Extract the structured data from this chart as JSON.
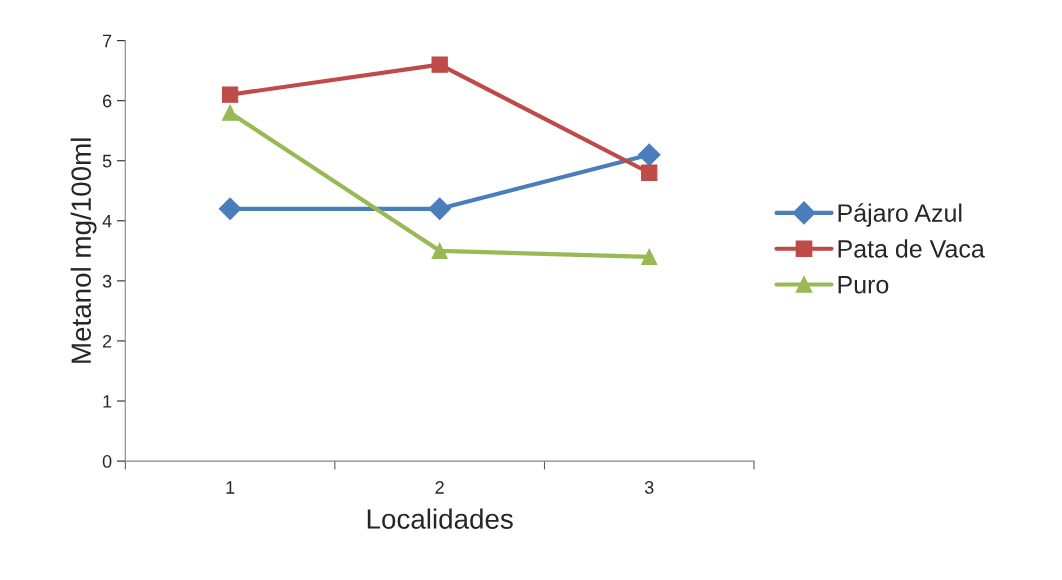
{
  "chart_data": {
    "type": "line",
    "xlabel": "Localidades",
    "ylabel": "Metanol mg/100ml",
    "categories": [
      "1",
      "2",
      "3"
    ],
    "series": [
      {
        "name": "Pájaro Azul",
        "color": "#4a7ebb",
        "values": [
          4.2,
          4.2,
          5.1
        ],
        "marker": "diamond"
      },
      {
        "name": "Pata de Vaca",
        "color": "#be4b48",
        "values": [
          6.1,
          6.6,
          4.8
        ],
        "marker": "square"
      },
      {
        "name": "Puro",
        "color": "#98b954",
        "values": [
          5.8,
          3.5,
          3.4
        ],
        "marker": "triangle"
      }
    ],
    "ylim": [
      0,
      7
    ],
    "yticks": [
      0,
      1,
      2,
      3,
      4,
      5,
      6,
      7
    ],
    "grid": false,
    "legend": "right"
  }
}
